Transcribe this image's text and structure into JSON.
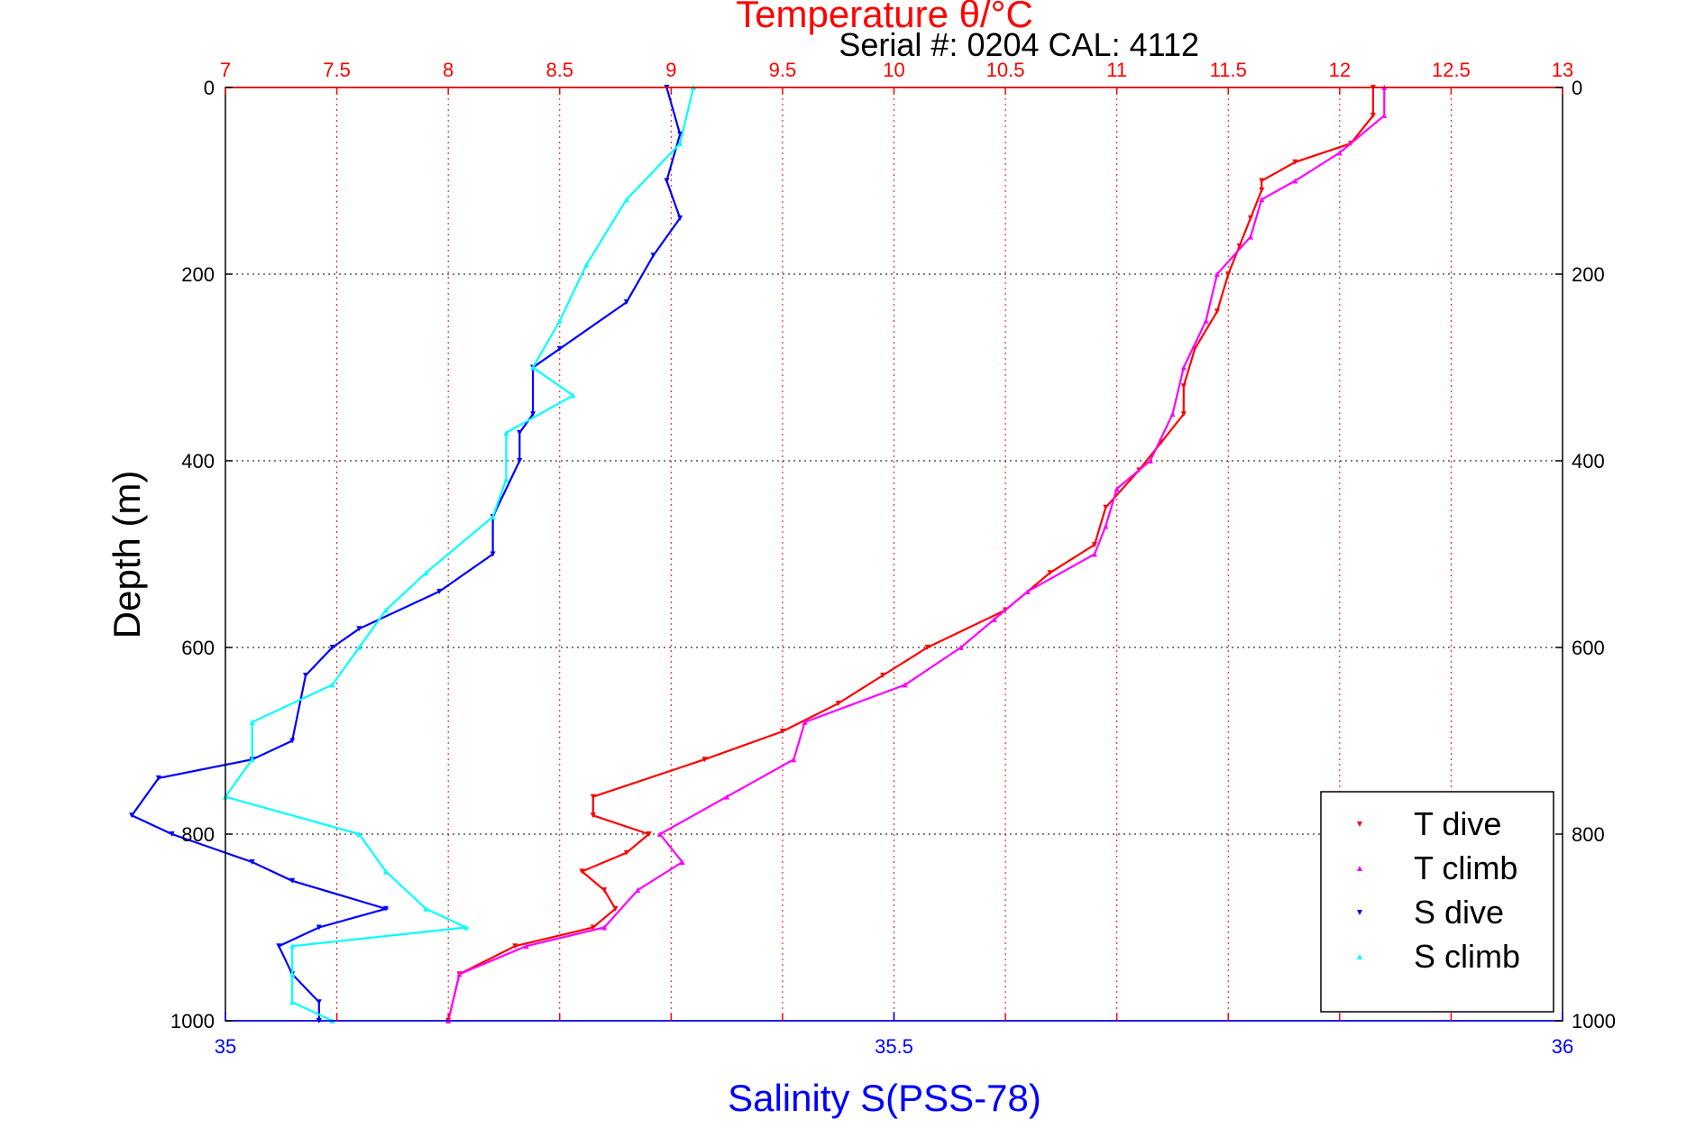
{
  "header": {
    "title": "Temperature θ/°C",
    "serial": "Serial #: 0204  CAL: 4112"
  },
  "axes": {
    "x_bottom_label": "Salinity S(PSS-78)",
    "y_label": "Depth (m)"
  },
  "legend": {
    "items": [
      {
        "label": "T dive",
        "color": "#ff0000",
        "marker": "triangle-down"
      },
      {
        "label": "T climb",
        "color": "#ff00ff",
        "marker": "triangle-up"
      },
      {
        "label": "S dive",
        "color": "#0000ff",
        "marker": "triangle-down"
      },
      {
        "label": "S climb",
        "color": "#00ffff",
        "marker": "triangle-up"
      }
    ]
  },
  "chart_data": {
    "type": "scatter",
    "title": "Temperature θ/°C",
    "subtitle": "Serial #: 0204  CAL: 4112",
    "xlabel": "Salinity S(PSS-78)",
    "ylabel": "Depth (m)",
    "x_top": {
      "ticks": [
        "7",
        "7.5",
        "8",
        "8.5",
        "9",
        "9.5",
        "10",
        "10.5",
        "11",
        "11.5",
        "12",
        "12.5",
        "13"
      ],
      "lim": [
        7,
        13
      ],
      "color": "#ff0000"
    },
    "x_bottom": {
      "ticks": [
        "35",
        "35.5",
        "36"
      ],
      "lim": [
        35,
        36
      ],
      "color": "#0000ff"
    },
    "y_left": {
      "ticks": [
        "0",
        "200",
        "400",
        "600",
        "800",
        "1000"
      ],
      "lim": [
        0,
        1000
      ],
      "reversed": true
    },
    "y_right": {
      "ticks": [
        "0",
        "200",
        "400",
        "600",
        "800",
        "1000"
      ]
    },
    "grid": true,
    "legend_position": "bottom-right",
    "series": [
      {
        "name": "T dive",
        "axis": "temperature",
        "color": "#ff0000",
        "marker": "triangle-down",
        "depth": [
          0,
          30,
          60,
          80,
          100,
          110,
          140,
          170,
          200,
          240,
          280,
          320,
          350,
          380,
          410,
          450,
          490,
          520,
          560,
          600,
          630,
          660,
          690,
          720,
          760,
          780,
          800,
          820,
          840,
          860,
          880,
          900,
          920,
          950,
          1000
        ],
        "values": [
          12.15,
          12.15,
          12.05,
          11.8,
          11.65,
          11.65,
          11.6,
          11.55,
          11.5,
          11.45,
          11.35,
          11.3,
          11.3,
          11.2,
          11.1,
          10.95,
          10.9,
          10.7,
          10.5,
          10.15,
          9.95,
          9.75,
          9.5,
          9.15,
          8.65,
          8.65,
          8.9,
          8.8,
          8.6,
          8.7,
          8.75,
          8.65,
          8.3,
          8.05,
          8.0
        ]
      },
      {
        "name": "T climb",
        "axis": "temperature",
        "color": "#ff00ff",
        "marker": "triangle-up",
        "depth": [
          0,
          30,
          70,
          100,
          120,
          160,
          200,
          250,
          300,
          350,
          400,
          430,
          470,
          500,
          540,
          570,
          600,
          640,
          680,
          720,
          760,
          800,
          830,
          860,
          900,
          920,
          950,
          1000
        ],
        "values": [
          12.2,
          12.2,
          12.0,
          11.8,
          11.65,
          11.6,
          11.45,
          11.4,
          11.3,
          11.25,
          11.15,
          11.0,
          10.95,
          10.9,
          10.6,
          10.45,
          10.3,
          10.05,
          9.6,
          9.55,
          9.25,
          8.95,
          9.05,
          8.85,
          8.7,
          8.35,
          8.05,
          8.0
        ]
      },
      {
        "name": "S dive",
        "axis": "salinity",
        "color": "#0000ff",
        "marker": "triangle-down",
        "depth": [
          0,
          50,
          100,
          140,
          180,
          230,
          280,
          300,
          350,
          370,
          400,
          460,
          500,
          540,
          580,
          600,
          630,
          700,
          720,
          740,
          780,
          800,
          830,
          850,
          880,
          900,
          920,
          950,
          980,
          1000
        ],
        "values": [
          35.33,
          35.34,
          35.33,
          35.34,
          35.32,
          35.3,
          35.25,
          35.23,
          35.23,
          35.22,
          35.22,
          35.2,
          35.2,
          35.16,
          35.1,
          35.08,
          35.06,
          35.05,
          35.02,
          34.95,
          34.93,
          34.96,
          35.02,
          35.05,
          35.12,
          35.07,
          35.04,
          35.05,
          35.07,
          35.07
        ]
      },
      {
        "name": "S climb",
        "axis": "salinity",
        "color": "#00ffff",
        "marker": "triangle-up",
        "depth": [
          0,
          60,
          120,
          190,
          250,
          300,
          330,
          370,
          420,
          460,
          520,
          560,
          600,
          640,
          680,
          720,
          760,
          800,
          840,
          880,
          900,
          920,
          950,
          980,
          1000
        ],
        "values": [
          35.35,
          35.34,
          35.3,
          35.27,
          35.25,
          35.23,
          35.26,
          35.21,
          35.21,
          35.2,
          35.15,
          35.12,
          35.1,
          35.08,
          35.02,
          35.02,
          35.0,
          35.1,
          35.12,
          35.15,
          35.18,
          35.05,
          35.05,
          35.05,
          35.08
        ]
      }
    ]
  }
}
